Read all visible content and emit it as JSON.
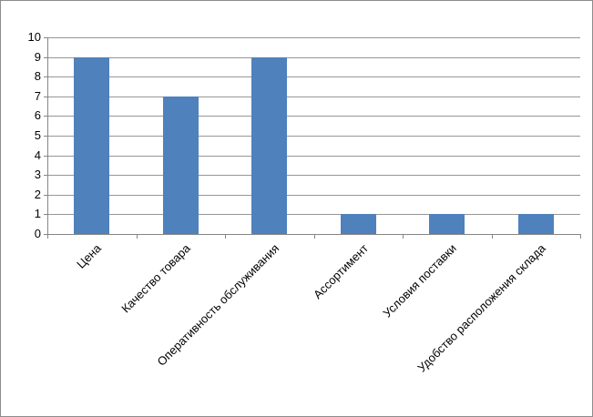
{
  "chart_data": {
    "type": "bar",
    "categories": [
      "Цена",
      "Качество товара",
      "Оперативность обслуживания",
      "Ассортимент",
      "Условия поставки",
      "Удобство расположения склада"
    ],
    "values": [
      9,
      7,
      9,
      1,
      1,
      1
    ],
    "title": "",
    "xlabel": "",
    "ylabel": "",
    "ylim": [
      0,
      10
    ],
    "yticks": [
      0,
      1,
      2,
      3,
      4,
      5,
      6,
      7,
      8,
      9,
      10
    ],
    "grid": true,
    "legend": false,
    "x_label_rotation_deg": 45,
    "colors": {
      "bar_fill": "#4F81BD",
      "gridline": "#969696",
      "axis": "#868686",
      "tick": "#868686",
      "text": "#000000",
      "chart_border": "#8C8C8C",
      "background": "#FFFFFF"
    }
  }
}
